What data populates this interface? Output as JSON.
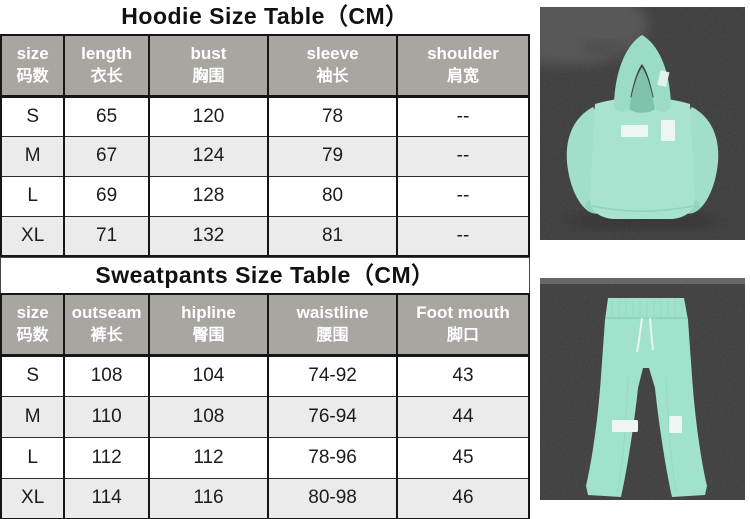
{
  "hoodie_table": {
    "title": "Hoodie Size Table（CM）",
    "columns": [
      {
        "en": "size",
        "zh": "码数"
      },
      {
        "en": "length",
        "zh": "衣长"
      },
      {
        "en": "bust",
        "zh": "胸围"
      },
      {
        "en": "sleeve",
        "zh": "袖长"
      },
      {
        "en": "shoulder",
        "zh": "肩宽"
      }
    ],
    "rows": [
      [
        "S",
        "65",
        "120",
        "78",
        "--"
      ],
      [
        "M",
        "67",
        "124",
        "79",
        "--"
      ],
      [
        "L",
        "69",
        "128",
        "80",
        "--"
      ],
      [
        "XL",
        "71",
        "132",
        "81",
        "--"
      ]
    ]
  },
  "sweatpants_table": {
    "title": "Sweatpants Size Table（CM）",
    "columns": [
      {
        "en": "size",
        "zh": "码数"
      },
      {
        "en": "outseam",
        "zh": "裤长"
      },
      {
        "en": "hipline",
        "zh": "臀围"
      },
      {
        "en": "waistline",
        "zh": "腰围"
      },
      {
        "en": "Foot mouth",
        "zh": "脚口"
      }
    ],
    "rows": [
      [
        "S",
        "108",
        "104",
        "74-92",
        "43"
      ],
      [
        "M",
        "110",
        "108",
        "76-94",
        "44"
      ],
      [
        "L",
        "112",
        "112",
        "78-96",
        "45"
      ],
      [
        "XL",
        "114",
        "116",
        "80-98",
        "46"
      ]
    ]
  },
  "photos": {
    "hoodie_alt": "Mint green hoodie laid flat on dark gray carpet",
    "sweatpants_alt": "Mint green sweatpants laid flat on dark gray carpet"
  },
  "colors": {
    "title_text": "#111111",
    "header_bg": "#a9a6a2",
    "header_text": "#ffffff",
    "row_alt_bg": "#ebebeb",
    "table_border": "#161616",
    "body_text": "#1c1c1c",
    "garment_mint": "#a7e3cf",
    "garment_mint_shade": "#8fd2bd",
    "photo_bg": "#5b5b5b"
  }
}
